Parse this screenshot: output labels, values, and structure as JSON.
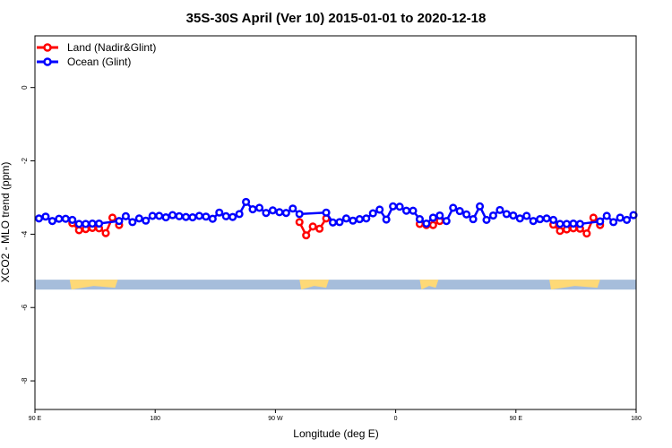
{
  "chart_data": {
    "type": "line",
    "title": "35S-30S April (Ver 10)   2015-01-01 to 2020-12-18",
    "xlabel": "Longitude (deg E)",
    "ylabel": "XCO2 - MLO trend (ppm)",
    "xlim": [
      90,
      540
    ],
    "ylim": [
      -8.78,
      1.41
    ],
    "x_ticks": [
      {
        "value": 90,
        "label": "90 E"
      },
      {
        "value": 180,
        "label": "180"
      },
      {
        "value": 270,
        "label": "90 W"
      },
      {
        "value": 360,
        "label": "0"
      },
      {
        "value": 450,
        "label": "90 E"
      },
      {
        "value": 540,
        "label": "180"
      }
    ],
    "y_ticks": [
      {
        "value": 0,
        "label": "0"
      },
      {
        "value": -2,
        "label": "-2"
      },
      {
        "value": -4,
        "label": "-4"
      },
      {
        "value": -6,
        "label": "-6"
      },
      {
        "value": -8,
        "label": "-8"
      }
    ],
    "grid": false,
    "legend_position": "top-left",
    "series": [
      {
        "name": "Land (Nadir&Glint)",
        "color": "#ff0000",
        "segments": [
          [
            [
              118,
              -3.7
            ],
            [
              123,
              -3.89
            ],
            [
              128,
              -3.86
            ],
            [
              133,
              -3.83
            ],
            [
              138,
              -3.84
            ],
            [
              143,
              -3.97
            ],
            [
              148,
              -3.55
            ],
            [
              153,
              -3.75
            ]
          ],
          [
            [
              288,
              -3.67
            ],
            [
              293,
              -4.03
            ],
            [
              298,
              -3.79
            ],
            [
              303,
              -3.85
            ],
            [
              308,
              -3.57
            ]
          ],
          [
            [
              378,
              -3.72
            ],
            [
              383,
              -3.75
            ],
            [
              388,
              -3.75
            ],
            [
              393,
              -3.64
            ]
          ],
          [
            [
              478,
              -3.74
            ],
            [
              483,
              -3.91
            ],
            [
              488,
              -3.87
            ],
            [
              493,
              -3.84
            ],
            [
              498,
              -3.85
            ],
            [
              503,
              -3.98
            ],
            [
              508,
              -3.55
            ],
            [
              513,
              -3.75
            ]
          ]
        ]
      },
      {
        "name": "Ocean (Glint)",
        "color": "#0000ff",
        "segments": [
          [
            [
              93,
              -3.57
            ],
            [
              98,
              -3.52
            ],
            [
              103,
              -3.64
            ],
            [
              108,
              -3.58
            ],
            [
              113,
              -3.58
            ],
            [
              118,
              -3.61
            ],
            [
              123,
              -3.72
            ],
            [
              128,
              -3.72
            ],
            [
              133,
              -3.71
            ],
            [
              138,
              -3.71
            ],
            [
              153,
              -3.64
            ],
            [
              158,
              -3.51
            ],
            [
              163,
              -3.67
            ],
            [
              168,
              -3.57
            ],
            [
              173,
              -3.63
            ],
            [
              178,
              -3.5
            ],
            [
              183,
              -3.5
            ],
            [
              188,
              -3.54
            ],
            [
              193,
              -3.48
            ],
            [
              198,
              -3.51
            ],
            [
              203,
              -3.53
            ],
            [
              208,
              -3.54
            ],
            [
              213,
              -3.5
            ],
            [
              218,
              -3.52
            ],
            [
              223,
              -3.58
            ],
            [
              228,
              -3.41
            ],
            [
              233,
              -3.51
            ],
            [
              238,
              -3.53
            ],
            [
              243,
              -3.45
            ],
            [
              248,
              -3.12
            ],
            [
              253,
              -3.32
            ],
            [
              258,
              -3.28
            ],
            [
              263,
              -3.42
            ],
            [
              268,
              -3.35
            ],
            [
              273,
              -3.4
            ],
            [
              278,
              -3.42
            ],
            [
              283,
              -3.3
            ],
            [
              288,
              -3.45
            ],
            [
              308,
              -3.41
            ],
            [
              313,
              -3.68
            ],
            [
              318,
              -3.67
            ],
            [
              323,
              -3.57
            ],
            [
              328,
              -3.63
            ],
            [
              333,
              -3.59
            ],
            [
              338,
              -3.57
            ],
            [
              343,
              -3.43
            ],
            [
              348,
              -3.33
            ],
            [
              353,
              -3.6
            ],
            [
              358,
              -3.24
            ],
            [
              363,
              -3.25
            ],
            [
              368,
              -3.36
            ],
            [
              373,
              -3.36
            ],
            [
              378,
              -3.59
            ],
            [
              383,
              -3.71
            ],
            [
              388,
              -3.55
            ],
            [
              393,
              -3.49
            ],
            [
              398,
              -3.64
            ],
            [
              403,
              -3.28
            ],
            [
              408,
              -3.37
            ],
            [
              413,
              -3.46
            ],
            [
              418,
              -3.59
            ],
            [
              423,
              -3.24
            ],
            [
              428,
              -3.61
            ],
            [
              433,
              -3.49
            ],
            [
              438,
              -3.34
            ],
            [
              443,
              -3.45
            ],
            [
              448,
              -3.49
            ],
            [
              453,
              -3.57
            ],
            [
              458,
              -3.5
            ],
            [
              463,
              -3.64
            ],
            [
              468,
              -3.59
            ],
            [
              473,
              -3.57
            ],
            [
              478,
              -3.61
            ],
            [
              483,
              -3.72
            ],
            [
              488,
              -3.72
            ],
            [
              493,
              -3.71
            ],
            [
              498,
              -3.72
            ],
            [
              513,
              -3.65
            ],
            [
              518,
              -3.5
            ],
            [
              523,
              -3.67
            ],
            [
              528,
              -3.55
            ],
            [
              533,
              -3.61
            ],
            [
              538,
              -3.48
            ]
          ]
        ]
      }
    ],
    "land_strip": {
      "ocean_color": "#a6bddb",
      "land_color": "#fed976",
      "y_range": [
        -5.51,
        -5.24
      ],
      "land_lon_ranges": [
        [
          116,
          152
        ],
        [
          288,
          310
        ],
        [
          378,
          392
        ],
        [
          475,
          513
        ]
      ]
    }
  }
}
